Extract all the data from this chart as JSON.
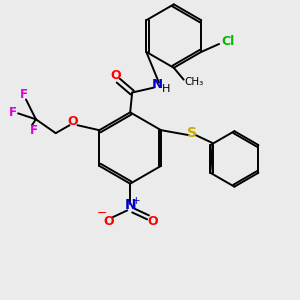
{
  "bg_color": "#ebebeb",
  "colors": {
    "O": "#ff0000",
    "N": "#0000cc",
    "S": "#ccaa00",
    "F": "#dd00dd",
    "Cl": "#00bb00",
    "C": "#000000",
    "H": "#000000"
  },
  "fig_size": [
    3.0,
    3.0
  ],
  "dpi": 100
}
